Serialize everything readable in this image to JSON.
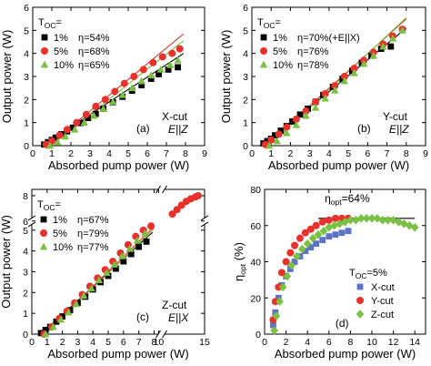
{
  "chart_data": [
    {
      "id": "a",
      "type": "scatter",
      "panel_label": "(a)",
      "annotation": [
        "X-cut",
        "E||Z"
      ],
      "xlabel": "Absorbed pump power (W)",
      "ylabel": "Output power (W)",
      "xlim": [
        0,
        9
      ],
      "ylim": [
        0,
        6
      ],
      "xticks": [
        0,
        1,
        2,
        3,
        4,
        5,
        6,
        7,
        8,
        9
      ],
      "yticks": [
        0,
        1,
        2,
        3,
        4,
        5,
        6
      ],
      "legend_title": "T",
      "legend_title_sub": "OC",
      "legend_title_suffix": "=",
      "series": [
        {
          "name": "1%",
          "eta_label": "η=54%",
          "marker": "square",
          "color": "#000000",
          "x": [
            0.6,
            0.8,
            1.0,
            1.2,
            1.5,
            1.8,
            2.1,
            2.5,
            2.9,
            3.3,
            3.7,
            4.2,
            4.7,
            5.2,
            5.7,
            6.2,
            6.6,
            7.1,
            7.6
          ],
          "y": [
            0.05,
            0.15,
            0.25,
            0.35,
            0.5,
            0.62,
            0.78,
            0.98,
            1.2,
            1.38,
            1.6,
            1.88,
            2.12,
            2.38,
            2.62,
            2.9,
            3.1,
            3.3,
            3.4
          ],
          "fit": [
            [
              0.5,
              0.0
            ],
            [
              7.9,
              4.0
            ]
          ]
        },
        {
          "name": "5%",
          "eta_label": "η=68%",
          "marker": "circle",
          "color": "#e8312a",
          "x": [
            0.7,
            1.0,
            1.4,
            1.8,
            2.3,
            2.8,
            3.3,
            3.8,
            4.3,
            4.8,
            5.3,
            5.8,
            6.3,
            6.8,
            7.3,
            7.7
          ],
          "y": [
            0.05,
            0.2,
            0.45,
            0.7,
            1.0,
            1.35,
            1.7,
            2.0,
            2.35,
            2.7,
            3.0,
            3.3,
            3.6,
            3.85,
            4.0,
            4.2
          ],
          "fit": [
            [
              0.8,
              0.0
            ],
            [
              7.9,
              4.85
            ]
          ]
        },
        {
          "name": "10%",
          "eta_label": "η=65%",
          "marker": "triangle",
          "color": "#7ac143",
          "x": [
            0.9,
            1.3,
            1.7,
            2.2,
            2.7,
            3.2,
            3.7,
            4.2,
            4.7,
            5.2,
            5.7,
            6.2,
            6.7,
            7.2,
            7.6
          ],
          "y": [
            0.0,
            0.15,
            0.4,
            0.7,
            1.0,
            1.3,
            1.6,
            1.9,
            2.2,
            2.5,
            2.8,
            3.05,
            3.3,
            3.5,
            3.7
          ],
          "fit": [
            [
              0.9,
              0.0
            ],
            [
              7.9,
              4.55
            ]
          ]
        }
      ]
    },
    {
      "id": "b",
      "type": "scatter",
      "panel_label": "(b)",
      "annotation": [
        "Y-cut",
        "E||Z"
      ],
      "xlabel": "Absorbed pump power (W)",
      "ylabel": "Output power (W)",
      "xlim": [
        0,
        9
      ],
      "ylim": [
        0,
        6
      ],
      "xticks": [
        0,
        1,
        2,
        3,
        4,
        5,
        6,
        7,
        8,
        9
      ],
      "yticks": [
        0,
        1,
        2,
        3,
        4,
        5,
        6
      ],
      "legend_title": "T",
      "legend_title_sub": "OC",
      "legend_title_suffix": "=",
      "series": [
        {
          "name": "1%",
          "eta_label": "η=70%(+E||X)",
          "marker": "square",
          "color": "#000000",
          "x": [
            0.6,
            0.8,
            1.0,
            1.2,
            1.5,
            1.8,
            2.1,
            2.5,
            2.9,
            3.3,
            3.7,
            4.2,
            4.7,
            5.2,
            5.7,
            6.2,
            6.7,
            7.2
          ],
          "y": [
            0.1,
            0.2,
            0.3,
            0.45,
            0.65,
            0.85,
            1.05,
            1.35,
            1.6,
            1.9,
            2.2,
            2.55,
            2.9,
            3.25,
            3.6,
            3.9,
            4.2,
            4.3
          ],
          "fit": [
            [
              0.6,
              0.0
            ],
            [
              8.0,
              5.1
            ]
          ]
        },
        {
          "name": "5%",
          "eta_label": "η=76%",
          "marker": "circle",
          "color": "#e8312a",
          "x": [
            0.7,
            1.0,
            1.4,
            1.8,
            2.3,
            2.8,
            3.3,
            3.8,
            4.3,
            4.8,
            5.3,
            5.8,
            6.3,
            6.8,
            7.3,
            7.8
          ],
          "y": [
            0.05,
            0.25,
            0.5,
            0.8,
            1.15,
            1.5,
            1.9,
            2.25,
            2.6,
            3.0,
            3.35,
            3.7,
            4.05,
            4.4,
            4.75,
            5.05
          ],
          "fit": [
            [
              0.7,
              0.0
            ],
            [
              8.0,
              5.5
            ]
          ]
        },
        {
          "name": "10%",
          "eta_label": "η=78%",
          "marker": "triangle",
          "color": "#7ac143",
          "x": [
            0.9,
            1.3,
            1.8,
            2.3,
            2.8,
            3.3,
            3.8,
            4.3,
            4.8,
            5.3,
            5.8,
            6.3,
            6.8,
            7.3,
            7.8
          ],
          "y": [
            0.0,
            0.2,
            0.55,
            0.9,
            1.3,
            1.65,
            2.05,
            2.4,
            2.8,
            3.15,
            3.55,
            3.9,
            4.3,
            4.65,
            5.0
          ],
          "fit": [
            [
              0.9,
              0.0
            ],
            [
              8.0,
              5.55
            ]
          ]
        }
      ]
    },
    {
      "id": "c",
      "type": "scatter",
      "panel_label": "(c)",
      "annotation": [
        "Z-cut",
        "E||X"
      ],
      "xlabel": "Absorbed pump power (W)",
      "ylabel": "Output power (W)",
      "xlim": [
        0,
        15
      ],
      "ylim": [
        0,
        8.5
      ],
      "axis_break_x": [
        8.3,
        10.6
      ],
      "axis_break_y": [
        5.3,
        6.2
      ],
      "xticks": [
        0,
        1,
        2,
        3,
        4,
        5,
        6,
        7,
        8,
        10,
        15
      ],
      "yticks": [
        0,
        1,
        2,
        3,
        4,
        5,
        6,
        8
      ],
      "legend_title": "T",
      "legend_title_sub": "OC",
      "legend_title_suffix": "=",
      "series": [
        {
          "name": "1%",
          "eta_label": "η=67%",
          "marker": "square",
          "color": "#000000",
          "x": [
            0.6,
            0.9,
            1.2,
            1.6,
            2.0,
            2.5,
            3.0,
            3.5,
            4.0,
            4.5,
            5.0,
            5.5,
            6.0,
            6.5,
            7.0,
            7.5
          ],
          "y": [
            0.05,
            0.2,
            0.35,
            0.6,
            0.85,
            1.15,
            1.5,
            1.8,
            2.15,
            2.5,
            2.8,
            3.15,
            3.5,
            3.85,
            4.2,
            4.45
          ],
          "fit": [
            [
              0.6,
              0.0
            ],
            [
              7.9,
              4.9
            ]
          ]
        },
        {
          "name": "5%",
          "eta_label": "η=79%",
          "marker": "circle",
          "color": "#e8312a",
          "x": [
            0.8,
            1.3,
            1.8,
            2.3,
            2.8,
            3.3,
            3.8,
            4.3,
            4.8,
            5.3,
            5.8,
            6.3,
            6.8,
            7.3,
            7.8,
            11.5,
            12.0,
            12.5,
            13.0,
            13.5,
            14.0,
            14.3
          ],
          "y": [
            0.0,
            0.35,
            0.75,
            1.1,
            1.5,
            1.9,
            2.3,
            2.7,
            3.1,
            3.5,
            3.9,
            4.3,
            4.7,
            5.0,
            5.2,
            6.55,
            6.9,
            7.25,
            7.55,
            7.75,
            7.9,
            8.0
          ],
          "fit": [
            [
              0.8,
              0.0
            ],
            [
              8.0,
              5.55
            ]
          ]
        },
        {
          "name": "10%",
          "eta_label": "η=77%",
          "marker": "triangle",
          "color": "#7ac143",
          "x": [
            0.9,
            1.4,
            1.9,
            2.4,
            2.9,
            3.4,
            3.9,
            4.4,
            4.9,
            5.4,
            5.9,
            6.4,
            6.9,
            7.4
          ],
          "y": [
            0.0,
            0.35,
            0.7,
            1.05,
            1.45,
            1.85,
            2.2,
            2.6,
            2.95,
            3.35,
            3.75,
            4.1,
            4.5,
            4.85
          ],
          "fit": [
            [
              0.9,
              0.0
            ],
            [
              8.0,
              5.4
            ]
          ]
        }
      ]
    },
    {
      "id": "d",
      "type": "scatter",
      "panel_label": "(d)",
      "xlabel": "Absorbed pump power (W)",
      "ylabel": "η",
      "ylabel_sub": "opt",
      "ylabel_suffix": " (%)",
      "xlim": [
        0,
        15
      ],
      "ylim": [
        0,
        80
      ],
      "xticks": [
        0,
        2,
        4,
        6,
        8,
        10,
        12,
        14
      ],
      "yticks": [
        0,
        20,
        40,
        60,
        80
      ],
      "legend_title": "T",
      "legend_title_sub": "OC",
      "legend_title_suffix": "=5%",
      "hline": {
        "y": 64,
        "x": [
          5.0,
          14.0
        ],
        "label": "η",
        "label_sub": "opt",
        "label_suffix": "=64%"
      },
      "series": [
        {
          "name": "X-cut",
          "marker": "square",
          "color": "#5b73c7",
          "x": [
            0.8,
            1.0,
            1.3,
            1.6,
            2.0,
            2.4,
            2.8,
            3.3,
            3.8,
            4.3,
            4.8,
            5.4,
            6.0,
            6.6,
            7.2,
            7.8
          ],
          "y": [
            5,
            12,
            20,
            27,
            32,
            36,
            40,
            43,
            46,
            48,
            50,
            52,
            54,
            55,
            56,
            57
          ]
        },
        {
          "name": "Y-cut",
          "marker": "circle",
          "color": "#e8312a",
          "x": [
            0.8,
            1.0,
            1.3,
            1.6,
            2.0,
            2.4,
            2.8,
            3.3,
            3.8,
            4.3,
            4.8,
            5.4,
            6.0,
            6.6,
            7.2,
            7.8
          ],
          "y": [
            8,
            18,
            26,
            34,
            40,
            45,
            49,
            53,
            56,
            58,
            60,
            62,
            63,
            64,
            64,
            64
          ]
        },
        {
          "name": "Z-cut",
          "marker": "diamond",
          "color": "#7ac143",
          "x": [
            0.9,
            1.1,
            1.4,
            1.7,
            2.1,
            2.5,
            3.0,
            3.5,
            4.0,
            4.5,
            5.0,
            5.5,
            6.0,
            6.5,
            7.0,
            7.5,
            8.0,
            8.5,
            9.0,
            9.5,
            10.0,
            10.5,
            11.0,
            11.5,
            12.0,
            12.5,
            13.0,
            13.5,
            14.0
          ],
          "y": [
            2,
            10,
            18,
            26,
            32,
            38,
            43,
            47,
            50,
            53,
            55,
            57,
            59,
            60,
            61,
            62,
            63,
            63,
            64,
            64,
            64,
            64,
            63,
            63,
            63,
            62,
            61,
            60,
            59
          ]
        }
      ]
    }
  ]
}
